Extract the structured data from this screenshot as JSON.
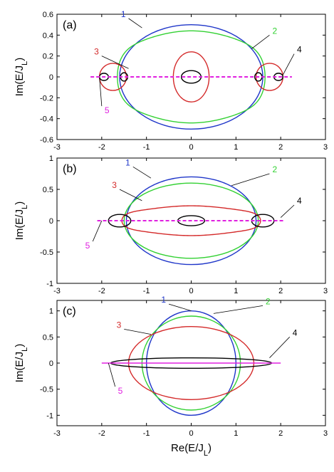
{
  "chart_data": [
    {
      "type": "line",
      "panel_label": "(a)",
      "ylabel": "Im(E/J_L)",
      "xlim": [
        -3,
        3
      ],
      "ylim": [
        -0.6,
        0.6
      ],
      "xticks": [
        "-3",
        "-2",
        "-1",
        "0",
        "1",
        "2",
        "3"
      ],
      "yticks": [
        "-0.6",
        "-0.4",
        "-0.2",
        "0",
        "0.2",
        "0.4",
        "0.6"
      ],
      "xtick_values": [
        -3,
        -2,
        -1,
        0,
        1,
        2,
        3
      ],
      "ytick_values": [
        -0.6,
        -0.4,
        -0.2,
        0,
        0.2,
        0.4,
        0.6
      ],
      "grid": false,
      "series": [
        {
          "name": "1",
          "color": "#1f36c9",
          "shape": "ellipse",
          "cx": 0,
          "rx": 1.6,
          "ry": 0.5
        },
        {
          "name": "2",
          "color": "#33d133",
          "shape": "wavy",
          "cx": 0,
          "rx": 1.65,
          "ry": 0.42,
          "wave": 0.05
        },
        {
          "name": "3",
          "color": "#d42a2a",
          "shape": "ellipses",
          "items": [
            {
              "cx": 0,
              "rx": 0.4,
              "ry": 0.24
            },
            {
              "cx": -1.75,
              "rx": 0.3,
              "ry": 0.13
            },
            {
              "cx": 1.75,
              "rx": 0.3,
              "ry": 0.13
            }
          ]
        },
        {
          "name": "4",
          "color": "#000000",
          "shape": "ellipses",
          "items": [
            {
              "cx": 0,
              "rx": 0.22,
              "ry": 0.06
            },
            {
              "cx": -1.5,
              "rx": 0.08,
              "ry": 0.04
            },
            {
              "cx": 1.5,
              "rx": 0.08,
              "ry": 0.04
            },
            {
              "cx": -1.95,
              "rx": 0.1,
              "ry": 0.035
            },
            {
              "cx": 1.95,
              "rx": 0.1,
              "ry": 0.035
            }
          ]
        },
        {
          "name": "5",
          "color": "#e020e0",
          "shape": "dashed-line",
          "x": [
            -2.25,
            2.25
          ],
          "y": [
            0,
            0
          ]
        }
      ],
      "labels": [
        {
          "text": "1",
          "color": "#1f36c9"
        },
        {
          "text": "2",
          "color": "#33d133"
        },
        {
          "text": "3",
          "color": "#d42a2a"
        },
        {
          "text": "4",
          "color": "#000000"
        },
        {
          "text": "5",
          "color": "#e020e0"
        }
      ]
    },
    {
      "type": "line",
      "panel_label": "(b)",
      "ylabel": "Im(E/J_L)",
      "xlim": [
        -3,
        3
      ],
      "ylim": [
        -1,
        1
      ],
      "xticks": [
        "-3",
        "-2",
        "-1",
        "0",
        "1",
        "2",
        "3"
      ],
      "yticks": [
        "-1",
        "-0.5",
        "0",
        "0.5",
        "1"
      ],
      "xtick_values": [
        -3,
        -2,
        -1,
        0,
        1,
        2,
        3
      ],
      "ytick_values": [
        -1,
        -0.5,
        0,
        0.5,
        1
      ],
      "grid": false,
      "series": [
        {
          "name": "1",
          "color": "#1f36c9",
          "shape": "ellipse",
          "cx": 0,
          "rx": 1.45,
          "ry": 0.7
        },
        {
          "name": "2",
          "color": "#33d133",
          "shape": "ellipse",
          "cx": 0,
          "rx": 1.5,
          "ry": 0.6
        },
        {
          "name": "3",
          "color": "#d42a2a",
          "shape": "wavy",
          "cx": 0,
          "rx": 1.55,
          "ry": 0.22,
          "wave": 0.08
        },
        {
          "name": "4",
          "color": "#000000",
          "shape": "ellipses",
          "items": [
            {
              "cx": 0,
              "rx": 0.3,
              "ry": 0.08
            },
            {
              "cx": -1.6,
              "rx": 0.25,
              "ry": 0.1
            },
            {
              "cx": 1.6,
              "rx": 0.25,
              "ry": 0.1
            }
          ]
        },
        {
          "name": "5",
          "color": "#e020e0",
          "shape": "dashed-line",
          "x": [
            -2.1,
            2.1
          ],
          "y": [
            0,
            0
          ]
        }
      ],
      "labels": [
        {
          "text": "1",
          "color": "#1f36c9"
        },
        {
          "text": "2",
          "color": "#33d133"
        },
        {
          "text": "3",
          "color": "#d42a2a"
        },
        {
          "text": "4",
          "color": "#000000"
        },
        {
          "text": "5",
          "color": "#e020e0"
        }
      ]
    },
    {
      "type": "line",
      "panel_label": "(c)",
      "ylabel": "Im(E/J_L)",
      "xlabel": "Re(E/J_L)",
      "xlim": [
        -3,
        3
      ],
      "ylim": [
        -1.2,
        1.2
      ],
      "xticks": [
        "-3",
        "-2",
        "-1",
        "0",
        "1",
        "2",
        "3"
      ],
      "yticks": [
        "-1",
        "-0.5",
        "0",
        "0.5",
        "1"
      ],
      "xtick_values": [
        -3,
        -2,
        -1,
        0,
        1,
        2,
        3
      ],
      "ytick_values": [
        -1,
        -0.5,
        0,
        0.5,
        1
      ],
      "grid": false,
      "series": [
        {
          "name": "1",
          "color": "#1f36c9",
          "shape": "ellipse",
          "cx": 0,
          "rx": 1.0,
          "ry": 1.0
        },
        {
          "name": "2",
          "color": "#33d133",
          "shape": "ellipse",
          "cx": 0,
          "rx": 1.1,
          "ry": 0.9
        },
        {
          "name": "3",
          "color": "#d42a2a",
          "shape": "ellipse",
          "cx": 0,
          "rx": 1.4,
          "ry": 0.7
        },
        {
          "name": "4",
          "color": "#000000",
          "shape": "ellipse",
          "cx": 0,
          "rx": 1.8,
          "ry": 0.1
        },
        {
          "name": "5",
          "color": "#e020e0",
          "shape": "line",
          "x": [
            -2,
            2
          ],
          "y": [
            0,
            0
          ]
        }
      ],
      "labels": [
        {
          "text": "1",
          "color": "#1f36c9"
        },
        {
          "text": "2",
          "color": "#33d133"
        },
        {
          "text": "3",
          "color": "#d42a2a"
        },
        {
          "text": "4",
          "color": "#000000"
        },
        {
          "text": "5",
          "color": "#e020e0"
        }
      ]
    }
  ]
}
